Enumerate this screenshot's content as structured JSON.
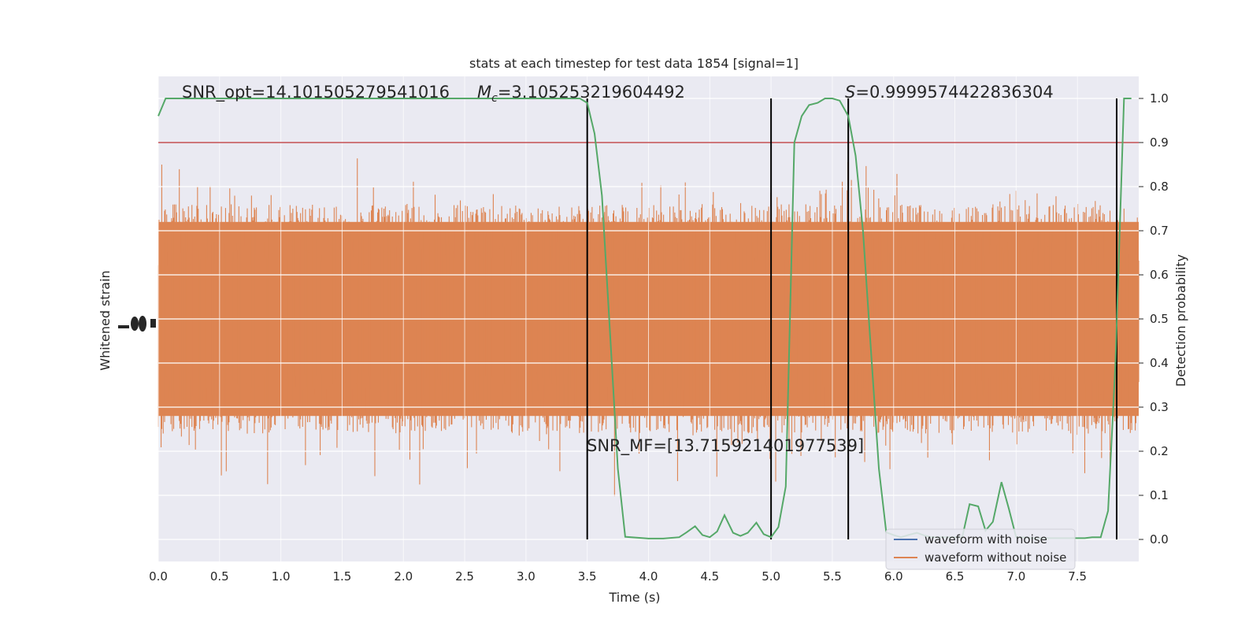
{
  "chart_data": {
    "type": "line",
    "title": "stats at each timestep for test data 1854 [signal=1]",
    "xlabel": "Time (s)",
    "ylabel_left": "Whitened strain",
    "ylabel_right": "Detection probability",
    "xlim": [
      0,
      8
    ],
    "ylim_right": [
      -0.05,
      1.05
    ],
    "x_ticks": [
      "0.0",
      "0.5",
      "1.0",
      "1.5",
      "2.0",
      "2.5",
      "3.0",
      "3.5",
      "4.0",
      "4.5",
      "5.0",
      "5.5",
      "6.0",
      "6.5",
      "7.0",
      "7.5"
    ],
    "x_tick_values": [
      0,
      0.5,
      1,
      1.5,
      2,
      2.5,
      3,
      3.5,
      4,
      4.5,
      5,
      5.5,
      6,
      6.5,
      7,
      7.5
    ],
    "y_right_ticks": [
      "0.0",
      "0.1",
      "0.2",
      "0.3",
      "0.4",
      "0.5",
      "0.6",
      "0.7",
      "0.8",
      "0.9",
      "1.0"
    ],
    "y_right_tick_values": [
      0,
      0.1,
      0.2,
      0.3,
      0.4,
      0.5,
      0.6,
      0.7,
      0.8,
      0.9,
      1.0
    ],
    "grid": true,
    "legend_position": "lower-right",
    "legend": [
      "waveform with noise",
      "waveform without noise"
    ],
    "colors": {
      "background": "#eaeaf2",
      "grid": "#ffffff",
      "noise_waveform": "#4c72b0",
      "clean_waveform": "#dd8452",
      "probability": "#55a868",
      "threshold": "#c44e52",
      "vlines": "#000000"
    },
    "annotations": {
      "snr_opt": "SNR_opt=14.101505279541016",
      "mc": "=3.105253219604492",
      "mc_symbol": "M",
      "mc_sub": "c",
      "s_symbol": "S",
      "s_value": "=0.9999574422836304",
      "snr_mf": "SNR_MF=[13.715921401977539]"
    },
    "threshold": 0.9,
    "vlines_x": [
      3.5,
      5.0,
      5.63,
      7.82
    ],
    "probability_series": {
      "name": "",
      "x": [
        0.0,
        0.06,
        0.5,
        1.0,
        1.5,
        2.0,
        2.5,
        3.0,
        3.35,
        3.44,
        3.5,
        3.56,
        3.62,
        3.69,
        3.75,
        3.81,
        4.0,
        4.12,
        4.25,
        4.31,
        4.38,
        4.44,
        4.5,
        4.56,
        4.62,
        4.69,
        4.75,
        4.81,
        4.88,
        4.94,
        5.0,
        5.06,
        5.12,
        5.19,
        5.25,
        5.31,
        5.38,
        5.44,
        5.5,
        5.56,
        5.63,
        5.69,
        5.75,
        5.81,
        5.88,
        5.94,
        6.0,
        6.06,
        6.12,
        6.19,
        6.25,
        6.31,
        6.38,
        6.44,
        6.5,
        6.56,
        6.62,
        6.69,
        6.75,
        6.81,
        6.88,
        6.94,
        7.0,
        7.06,
        7.12,
        7.19,
        7.25,
        7.31,
        7.38,
        7.44,
        7.5,
        7.56,
        7.62,
        7.69,
        7.75,
        7.81,
        7.88,
        7.94
      ],
      "y": [
        0.96,
        1.0,
        1.0,
        1.0,
        1.0,
        1.0,
        1.0,
        1.0,
        1.0,
        1.0,
        0.99,
        0.92,
        0.78,
        0.45,
        0.16,
        0.006,
        0.002,
        0.002,
        0.005,
        0.016,
        0.03,
        0.01,
        0.005,
        0.018,
        0.055,
        0.015,
        0.008,
        0.015,
        0.038,
        0.012,
        0.005,
        0.028,
        0.12,
        0.9,
        0.96,
        0.985,
        0.99,
        1.0,
        1.0,
        0.995,
        0.96,
        0.87,
        0.7,
        0.45,
        0.16,
        0.016,
        0.01,
        0.005,
        0.01,
        0.015,
        0.009,
        0.005,
        0.005,
        0.005,
        0.005,
        0.005,
        0.08,
        0.075,
        0.02,
        0.04,
        0.13,
        0.07,
        0.005,
        0.005,
        0.003,
        0.003,
        0.003,
        0.003,
        0.003,
        0.003,
        0.003,
        0.003,
        0.005,
        0.005,
        0.065,
        0.4,
        1.0,
        1.0
      ]
    }
  }
}
